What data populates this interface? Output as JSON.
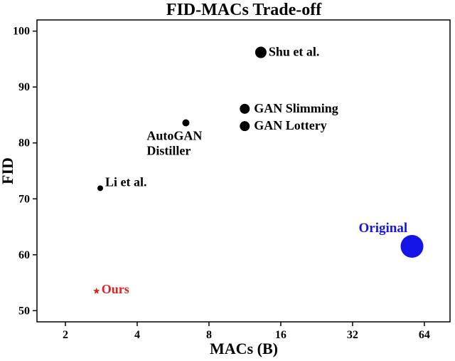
{
  "chart_data": {
    "type": "scatter",
    "title": "FID-MACs Trade-off",
    "xlabel": "MACs (B)",
    "ylabel": "FID",
    "x_scale": "log2",
    "xlim": [
      1.52,
      82
    ],
    "ylim": [
      48,
      102
    ],
    "x_ticks": [
      2,
      4,
      8,
      16,
      32,
      64
    ],
    "x_tick_labels": [
      "2",
      "4",
      "8",
      "16",
      "32",
      "64"
    ],
    "y_ticks": [
      50,
      60,
      70,
      80,
      90,
      100
    ],
    "y_tick_labels": [
      "50",
      "60",
      "70",
      "80",
      "90",
      "100"
    ],
    "grid": false,
    "legend": "none",
    "colors": {
      "default": "#000000",
      "ours": "#dd2222",
      "original": "#1515e8"
    },
    "points": [
      {
        "label": "Ours",
        "x": 2.7,
        "y": 53.5,
        "marker": "star",
        "color": "#dd2222"
      },
      {
        "label": "Li et al.",
        "x": 2.8,
        "y": 71.9,
        "marker": "circle",
        "color": "#000000"
      },
      {
        "label": "AutoGAN\nDistiller",
        "x": 6.4,
        "y": 83.6,
        "marker": "circle",
        "color": "#000000"
      },
      {
        "label": "GAN Slimming",
        "x": 11.3,
        "y": 86.1,
        "marker": "circle",
        "color": "#000000"
      },
      {
        "label": "GAN Lottery",
        "x": 11.3,
        "y": 83.0,
        "marker": "circle",
        "color": "#000000"
      },
      {
        "label": "Shu et al.",
        "x": 13.2,
        "y": 96.2,
        "marker": "circle",
        "color": "#000000"
      },
      {
        "label": "Original",
        "x": 56.8,
        "y": 61.5,
        "marker": "circle",
        "color": "#1515e8"
      }
    ]
  }
}
